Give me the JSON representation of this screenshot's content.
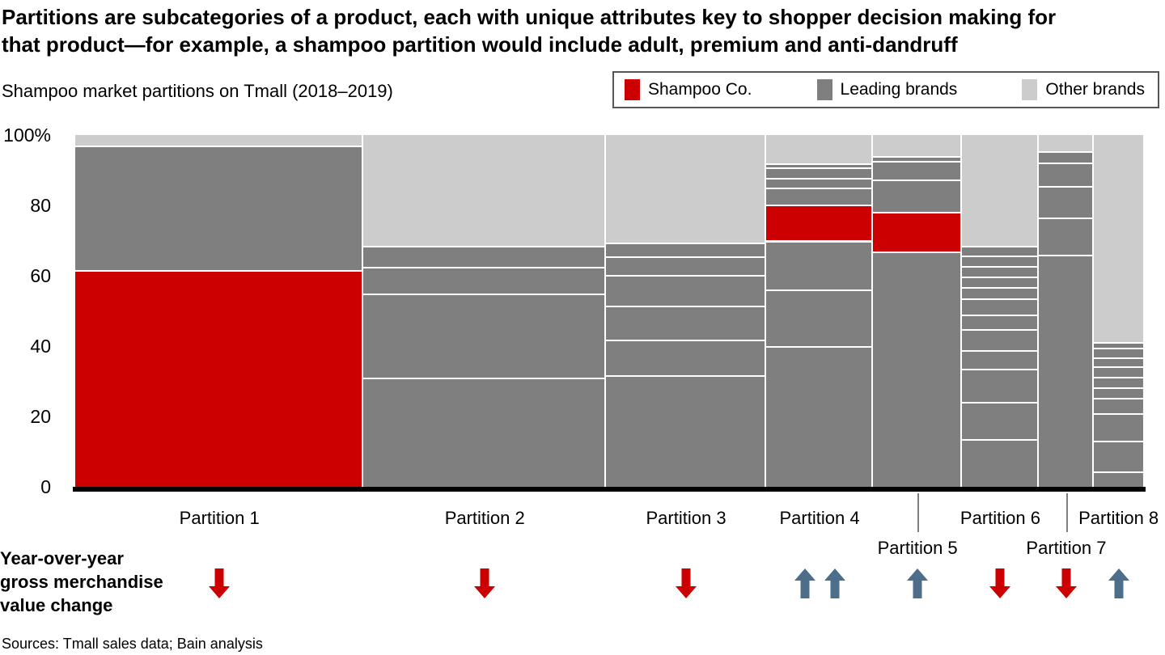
{
  "header": {
    "title_lines": [
      "Partitions are subcategories of a product, each with unique attributes key to shopper decision making for",
      "that product—for example, a shampoo partition would include adult, premium and anti-dandruff"
    ]
  },
  "subtitle": "Shampoo market partitions on Tmall (2018–2019)",
  "legend": {
    "items": [
      {
        "label": "Shampoo Co.",
        "color": "#cc0000"
      },
      {
        "label": "Leading brands",
        "color": "#7f7f7f"
      },
      {
        "label": "Other brands",
        "color": "#cccccc"
      }
    ]
  },
  "y_axis": {
    "ticks": [
      {
        "label": "100%",
        "value": 100
      },
      {
        "label": "80",
        "value": 80
      },
      {
        "label": "60",
        "value": 60
      },
      {
        "label": "40",
        "value": 40
      },
      {
        "label": "20",
        "value": 20
      },
      {
        "label": "0",
        "value": 0
      }
    ]
  },
  "yoy": {
    "lines": [
      "Year-over-year",
      "gross merchandise",
      "value change"
    ]
  },
  "sources": "Sources: Tmall sales data; Bain analysis",
  "chart_data": {
    "type": "marimekko",
    "title": "Shampoo market partitions on Tmall (2018–2019)",
    "ylim": [
      0,
      100
    ],
    "legend_position": "top-right",
    "colors": {
      "co": "#cc0000",
      "lead": "#7f7f7f",
      "other": "#cccccc"
    },
    "series_names": {
      "co": "Shampoo Co.",
      "lead": "Leading brands",
      "other": "Other brands"
    },
    "arrow_colors": {
      "up": "#4d6e8b",
      "down": "#cc0000"
    },
    "partitions": [
      {
        "label": "Partition 1",
        "width_pct": 27.0,
        "label_row": 1,
        "yoy_arrows": [
          "down"
        ],
        "segments": [
          {
            "from": 0,
            "to": 61.5,
            "series": "co"
          },
          {
            "from": 61.5,
            "to": 97,
            "series": "lead"
          },
          {
            "from": 97,
            "to": 100,
            "series": "other"
          }
        ]
      },
      {
        "label": "Partition 2",
        "width_pct": 22.7,
        "label_row": 1,
        "yoy_arrows": [
          "down"
        ],
        "segments": [
          {
            "from": 0,
            "to": 31,
            "series": "lead"
          },
          {
            "from": 31,
            "to": 55,
            "series": "lead"
          },
          {
            "from": 55,
            "to": 62.5,
            "series": "lead"
          },
          {
            "from": 62.5,
            "to": 68.5,
            "series": "lead"
          },
          {
            "from": 68.5,
            "to": 100,
            "series": "other"
          }
        ]
      },
      {
        "label": "Partition 3",
        "width_pct": 15.0,
        "label_row": 1,
        "yoy_arrows": [
          "down"
        ],
        "segments": [
          {
            "from": 0,
            "to": 31.7,
            "series": "lead"
          },
          {
            "from": 31.7,
            "to": 41.8,
            "series": "lead"
          },
          {
            "from": 41.8,
            "to": 51.5,
            "series": "lead"
          },
          {
            "from": 51.5,
            "to": 60.2,
            "series": "lead"
          },
          {
            "from": 60.2,
            "to": 65.5,
            "series": "lead"
          },
          {
            "from": 65.5,
            "to": 69.5,
            "series": "lead"
          },
          {
            "from": 69.5,
            "to": 100,
            "series": "other"
          }
        ]
      },
      {
        "label": "Partition 4",
        "width_pct": 10.0,
        "label_row": 1,
        "yoy_arrows": [
          "up",
          "up"
        ],
        "segments": [
          {
            "from": 0,
            "to": 40,
            "series": "lead"
          },
          {
            "from": 40,
            "to": 56,
            "series": "lead"
          },
          {
            "from": 56,
            "to": 70,
            "series": "lead"
          },
          {
            "from": 70,
            "to": 80.2,
            "series": "co"
          },
          {
            "from": 80.2,
            "to": 85.1,
            "series": "lead"
          },
          {
            "from": 85.1,
            "to": 87.8,
            "series": "lead"
          },
          {
            "from": 87.8,
            "to": 90.8,
            "series": "lead"
          },
          {
            "from": 90.8,
            "to": 92,
            "series": "lead"
          },
          {
            "from": 92,
            "to": 100,
            "series": "other"
          }
        ]
      },
      {
        "label": "Partition 5",
        "width_pct": 8.35,
        "label_row": 2,
        "yoy_arrows": [
          "up"
        ],
        "segments": [
          {
            "from": 0,
            "to": 67,
            "series": "lead"
          },
          {
            "from": 67,
            "to": 78.2,
            "series": "co"
          },
          {
            "from": 78.2,
            "to": 87.4,
            "series": "lead"
          },
          {
            "from": 87.4,
            "to": 92.6,
            "series": "lead"
          },
          {
            "from": 92.6,
            "to": 94,
            "series": "lead"
          },
          {
            "from": 94,
            "to": 100,
            "series": "other"
          }
        ]
      },
      {
        "label": "Partition 6",
        "width_pct": 7.15,
        "label_row": 1,
        "yoy_arrows": [
          "down"
        ],
        "segments": [
          {
            "from": 0,
            "to": 13.6,
            "series": "lead"
          },
          {
            "from": 13.6,
            "to": 24.1,
            "series": "lead"
          },
          {
            "from": 24.1,
            "to": 33.6,
            "series": "lead"
          },
          {
            "from": 33.6,
            "to": 38.9,
            "series": "lead"
          },
          {
            "from": 38.9,
            "to": 44.8,
            "series": "lead"
          },
          {
            "from": 44.8,
            "to": 49,
            "series": "lead"
          },
          {
            "from": 49,
            "to": 53.6,
            "series": "lead"
          },
          {
            "from": 53.6,
            "to": 56.8,
            "series": "lead"
          },
          {
            "from": 56.8,
            "to": 59.8,
            "series": "lead"
          },
          {
            "from": 59.8,
            "to": 62.8,
            "series": "lead"
          },
          {
            "from": 62.8,
            "to": 65.7,
            "series": "lead"
          },
          {
            "from": 65.7,
            "to": 68.5,
            "series": "lead"
          },
          {
            "from": 68.5,
            "to": 100,
            "series": "other"
          }
        ]
      },
      {
        "label": "Partition 7",
        "width_pct": 5.2,
        "label_row": 2,
        "yoy_arrows": [
          "down"
        ],
        "segments": [
          {
            "from": 0,
            "to": 66,
            "series": "lead"
          },
          {
            "from": 66,
            "to": 76.5,
            "series": "lead"
          },
          {
            "from": 76.5,
            "to": 85.5,
            "series": "lead"
          },
          {
            "from": 85.5,
            "to": 92.2,
            "series": "lead"
          },
          {
            "from": 92.2,
            "to": 95.5,
            "series": "lead"
          },
          {
            "from": 95.5,
            "to": 100,
            "series": "other"
          }
        ]
      },
      {
        "label": "Partition 8",
        "width_pct": 4.6,
        "label_row": 1,
        "yoy_arrows": [
          "up"
        ],
        "segments": [
          {
            "from": 0,
            "to": 4.4,
            "series": "lead"
          },
          {
            "from": 4.4,
            "to": 13,
            "series": "lead"
          },
          {
            "from": 13,
            "to": 21,
            "series": "lead"
          },
          {
            "from": 21,
            "to": 25.4,
            "series": "lead"
          },
          {
            "from": 25.4,
            "to": 28.2,
            "series": "lead"
          },
          {
            "from": 28.2,
            "to": 31.2,
            "series": "lead"
          },
          {
            "from": 31.2,
            "to": 34.2,
            "series": "lead"
          },
          {
            "from": 34.2,
            "to": 36.7,
            "series": "lead"
          },
          {
            "from": 36.7,
            "to": 39.5,
            "series": "lead"
          },
          {
            "from": 39.5,
            "to": 41.2,
            "series": "lead"
          },
          {
            "from": 41.2,
            "to": 100,
            "series": "other"
          }
        ]
      }
    ]
  }
}
